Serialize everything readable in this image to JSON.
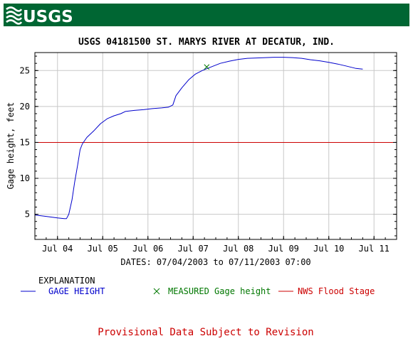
{
  "header": {
    "logo_text": "USGS",
    "banner_color": "#006633"
  },
  "chart_data": {
    "type": "line",
    "title": "USGS 04181500 ST. MARYS RIVER AT DECATUR, IND.",
    "xlabel": "DATES: 07/04/2003 to 07/11/2003 07:00",
    "ylabel": "Gage height, feet",
    "x_ticks": [
      "Jul 04",
      "Jul 05",
      "Jul 06",
      "Jul 07",
      "Jul 08",
      "Jul 09",
      "Jul 10",
      "Jul 11"
    ],
    "xlim": [
      -0.5,
      7.5
    ],
    "ylim": [
      1.5,
      27.5
    ],
    "y_ticks": [
      5,
      10,
      15,
      20,
      25
    ],
    "grid": true,
    "flood_stage": 15,
    "series": [
      {
        "name": "GAGE HEIGHT",
        "color": "#0000cc",
        "points": [
          [
            -0.5,
            4.9
          ],
          [
            -0.25,
            4.7
          ],
          [
            0.0,
            4.5
          ],
          [
            0.15,
            4.4
          ],
          [
            0.2,
            4.4
          ],
          [
            0.25,
            5.0
          ],
          [
            0.32,
            7.0
          ],
          [
            0.38,
            9.5
          ],
          [
            0.45,
            12.0
          ],
          [
            0.5,
            14.0
          ],
          [
            0.55,
            14.8
          ],
          [
            0.65,
            15.7
          ],
          [
            0.8,
            16.6
          ],
          [
            0.95,
            17.6
          ],
          [
            1.1,
            18.3
          ],
          [
            1.25,
            18.7
          ],
          [
            1.4,
            19.0
          ],
          [
            1.5,
            19.3
          ],
          [
            1.7,
            19.45
          ],
          [
            1.9,
            19.55
          ],
          [
            2.1,
            19.7
          ],
          [
            2.3,
            19.8
          ],
          [
            2.45,
            19.9
          ],
          [
            2.55,
            20.2
          ],
          [
            2.62,
            21.5
          ],
          [
            2.75,
            22.6
          ],
          [
            2.9,
            23.7
          ],
          [
            3.05,
            24.5
          ],
          [
            3.2,
            25.0
          ],
          [
            3.4,
            25.5
          ],
          [
            3.6,
            26.0
          ],
          [
            3.8,
            26.3
          ],
          [
            4.0,
            26.55
          ],
          [
            4.2,
            26.7
          ],
          [
            4.4,
            26.75
          ],
          [
            4.6,
            26.8
          ],
          [
            4.8,
            26.85
          ],
          [
            5.0,
            26.85
          ],
          [
            5.2,
            26.8
          ],
          [
            5.4,
            26.7
          ],
          [
            5.6,
            26.5
          ],
          [
            5.8,
            26.35
          ],
          [
            6.0,
            26.15
          ],
          [
            6.2,
            25.9
          ],
          [
            6.4,
            25.6
          ],
          [
            6.6,
            25.3
          ],
          [
            6.75,
            25.2
          ]
        ]
      }
    ],
    "measured": [
      {
        "name": "MEASURED Gage height",
        "color": "#007700",
        "x": 3.3,
        "y": 25.5
      }
    ],
    "legend": {
      "title": "EXPLANATION",
      "items": [
        {
          "label": "GAGE HEIGHT",
          "color": "#0000cc",
          "symbol": "line"
        },
        {
          "label": "MEASURED Gage height",
          "color": "#007700",
          "symbol": "x"
        },
        {
          "label": "NWS Flood Stage",
          "color": "#cc0000",
          "symbol": "line"
        }
      ]
    },
    "footer": "Provisional Data Subject to Revision",
    "footer_color": "#cc0000"
  }
}
